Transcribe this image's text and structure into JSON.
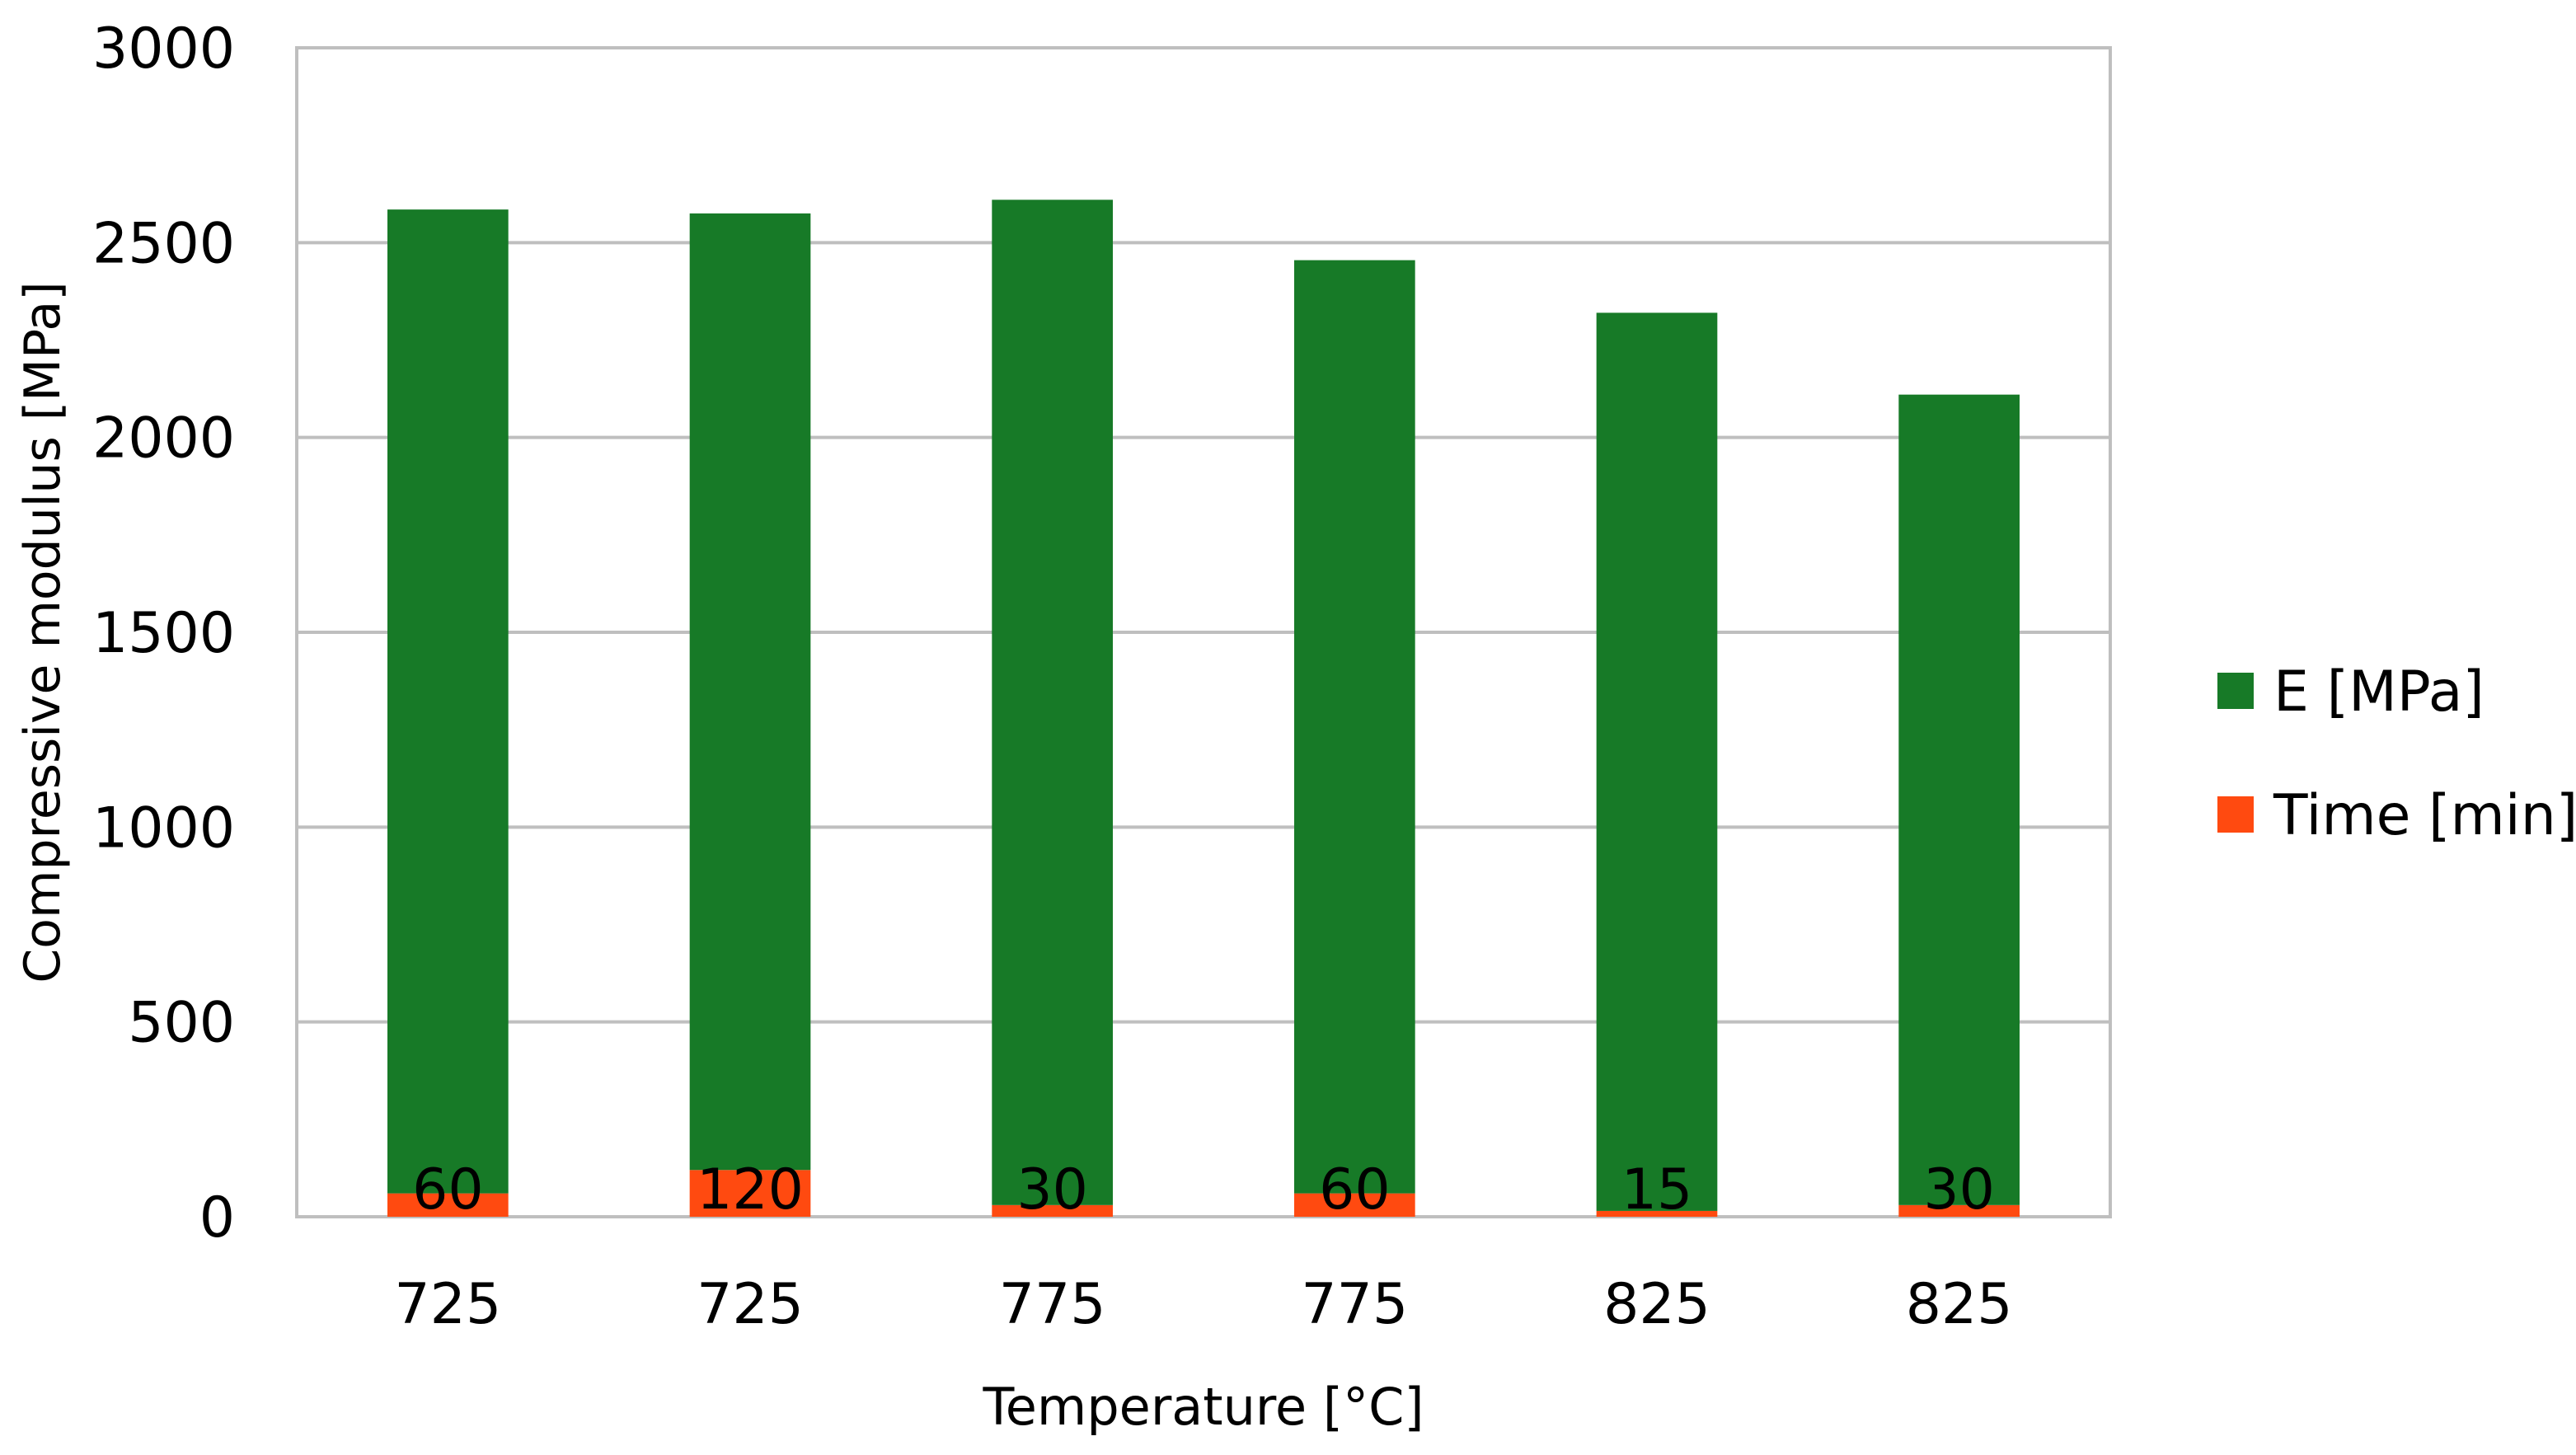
{
  "chart_data": {
    "type": "bar",
    "stacked": true,
    "categories": [
      "725",
      "725",
      "775",
      "775",
      "825",
      "825"
    ],
    "series": [
      {
        "name": "Time [min]",
        "values": [
          60,
          120,
          30,
          60,
          15,
          30
        ],
        "color": "#FF4A10",
        "data_labels": [
          "60",
          "120",
          "30",
          "60",
          "15",
          "30"
        ]
      },
      {
        "name": "E [MPa]",
        "values": [
          2525,
          2455,
          2580,
          2395,
          2305,
          2080
        ],
        "color": "#177A27"
      }
    ],
    "title": "",
    "xlabel": "Temperature [°C]",
    "ylabel": "Compressive modulus [MPa]",
    "ylim": [
      0,
      3000
    ],
    "yticks": [
      "0",
      "500",
      "1000",
      "1500",
      "2000",
      "2500",
      "3000"
    ],
    "grid": true,
    "legend_position": "right"
  }
}
